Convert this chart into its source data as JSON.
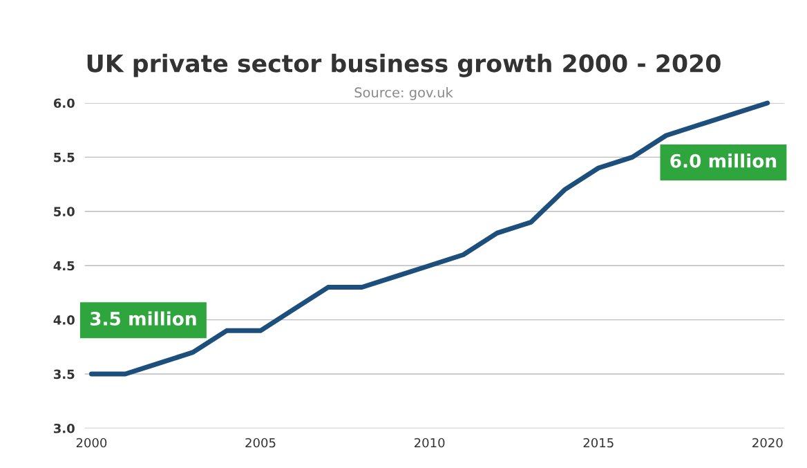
{
  "chart_data": {
    "type": "line",
    "title": "UK private sector business growth 2000 - 2020",
    "subtitle": "Source: gov.uk",
    "x": [
      2000,
      2001,
      2002,
      2003,
      2004,
      2005,
      2006,
      2007,
      2008,
      2009,
      2010,
      2011,
      2012,
      2013,
      2014,
      2015,
      2016,
      2017,
      2018,
      2019,
      2020
    ],
    "series": [
      {
        "color": "#1d4f7c",
        "values": [
          3.5,
          3.5,
          3.6,
          3.7,
          3.9,
          3.9,
          4.1,
          4.3,
          4.3,
          4.4,
          4.5,
          4.6,
          4.8,
          4.9,
          5.2,
          5.4,
          5.5,
          5.7,
          5.8,
          5.9,
          6.0
        ]
      }
    ],
    "annotations": [
      {
        "text": "3.5 million",
        "x": 2000,
        "y": 3.5
      },
      {
        "text": "6.0 million",
        "x": 2020,
        "y": 6.0
      }
    ],
    "xlim": [
      1999.8,
      2020.5
    ],
    "xticks": [
      2000,
      2005,
      2010,
      2015,
      2020
    ],
    "ylim": [
      3,
      6
    ],
    "yticks": [
      {
        "value": 3,
        "label": "3.0"
      },
      {
        "value": 3.5,
        "label": "3.5"
      },
      {
        "value": 4,
        "label": "4.0"
      },
      {
        "value": 4.5,
        "label": "4.5"
      },
      {
        "value": 5,
        "label": "5.0"
      },
      {
        "value": 5.5,
        "label": "5.5"
      },
      {
        "value": 6,
        "label": "6.0"
      }
    ],
    "grid": "y",
    "legend": false,
    "marker": "none",
    "line_style": "solid"
  }
}
